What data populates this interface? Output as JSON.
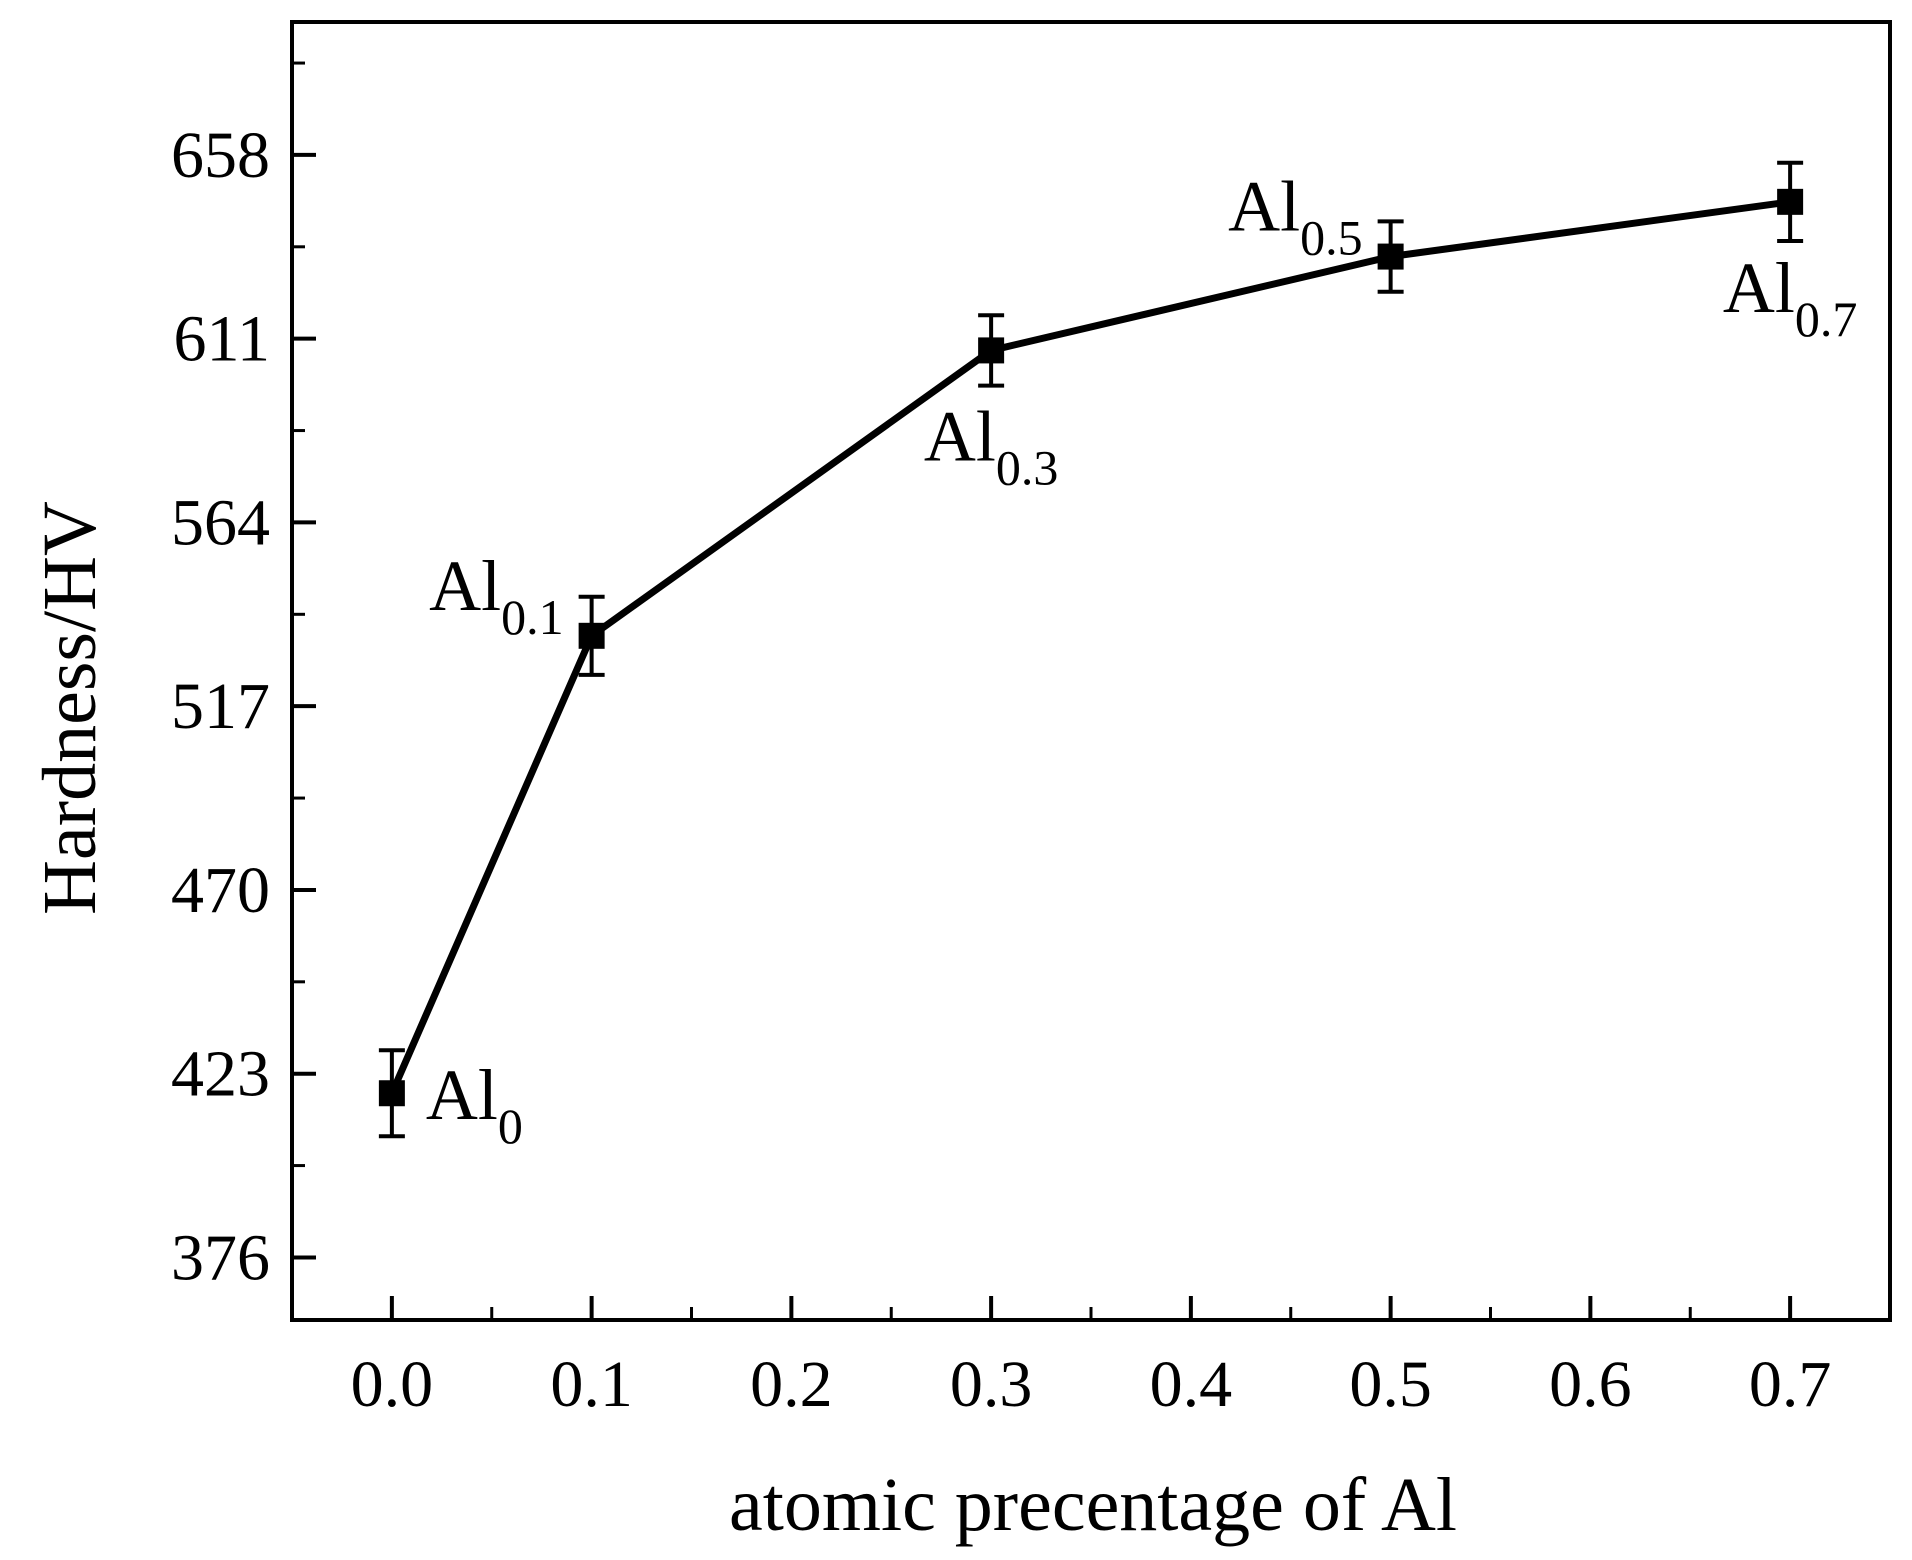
{
  "chart_data": {
    "type": "line",
    "title": "",
    "xlabel": "atomic precentage of Al",
    "ylabel": "Hardness/HV",
    "xlim": [
      -0.05,
      0.75
    ],
    "ylim": [
      360,
      692
    ],
    "x_ticks": [
      "0.0",
      "0.1",
      "0.2",
      "0.3",
      "0.4",
      "0.5",
      "0.6",
      "0.7"
    ],
    "y_ticks": [
      "376",
      "423",
      "470",
      "517",
      "564",
      "611",
      "658"
    ],
    "grid": false,
    "legend": "none",
    "series": [
      {
        "x": [
          0.0,
          0.1,
          0.3,
          0.5,
          0.7
        ],
        "y": [
          418,
          535,
          608,
          632,
          646
        ],
        "error": [
          11,
          10,
          9,
          9,
          10
        ],
        "marker": "square",
        "color": "#000000"
      }
    ],
    "annotations": [
      {
        "base": "Al",
        "sub": "0",
        "x": 0.0,
        "y": 418,
        "position": "right"
      },
      {
        "base": "Al",
        "sub": "0.1",
        "x": 0.1,
        "y": 535,
        "position": "upper-left"
      },
      {
        "base": "Al",
        "sub": "0.3",
        "x": 0.3,
        "y": 608,
        "position": "below"
      },
      {
        "base": "Al",
        "sub": "0.5",
        "x": 0.5,
        "y": 632,
        "position": "upper-left"
      },
      {
        "base": "Al",
        "sub": "0.7",
        "x": 0.7,
        "y": 646,
        "position": "below"
      }
    ]
  }
}
